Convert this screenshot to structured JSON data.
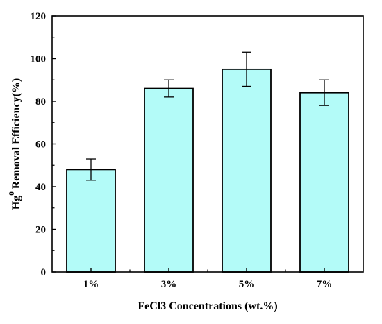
{
  "chart_data": {
    "type": "bar",
    "title": "",
    "xlabel": "FeCl3 Concentrations (wt.%)",
    "ylabel": {
      "prefix": "Hg",
      "superscript": "0",
      "suffix": " Removal Efficiency(%)"
    },
    "categories": [
      "1%",
      "3%",
      "5%",
      "7%"
    ],
    "values": [
      48,
      86,
      95,
      84
    ],
    "error_upper": [
      53,
      90,
      103,
      90
    ],
    "error_lower": [
      43,
      82,
      87,
      78
    ],
    "ylim": [
      0,
      120
    ],
    "yticks": [
      0,
      20,
      40,
      60,
      80,
      100,
      120
    ],
    "grid": false,
    "legend": "none",
    "bar_color": "#b3fbf8",
    "edge_color": "#000000"
  }
}
